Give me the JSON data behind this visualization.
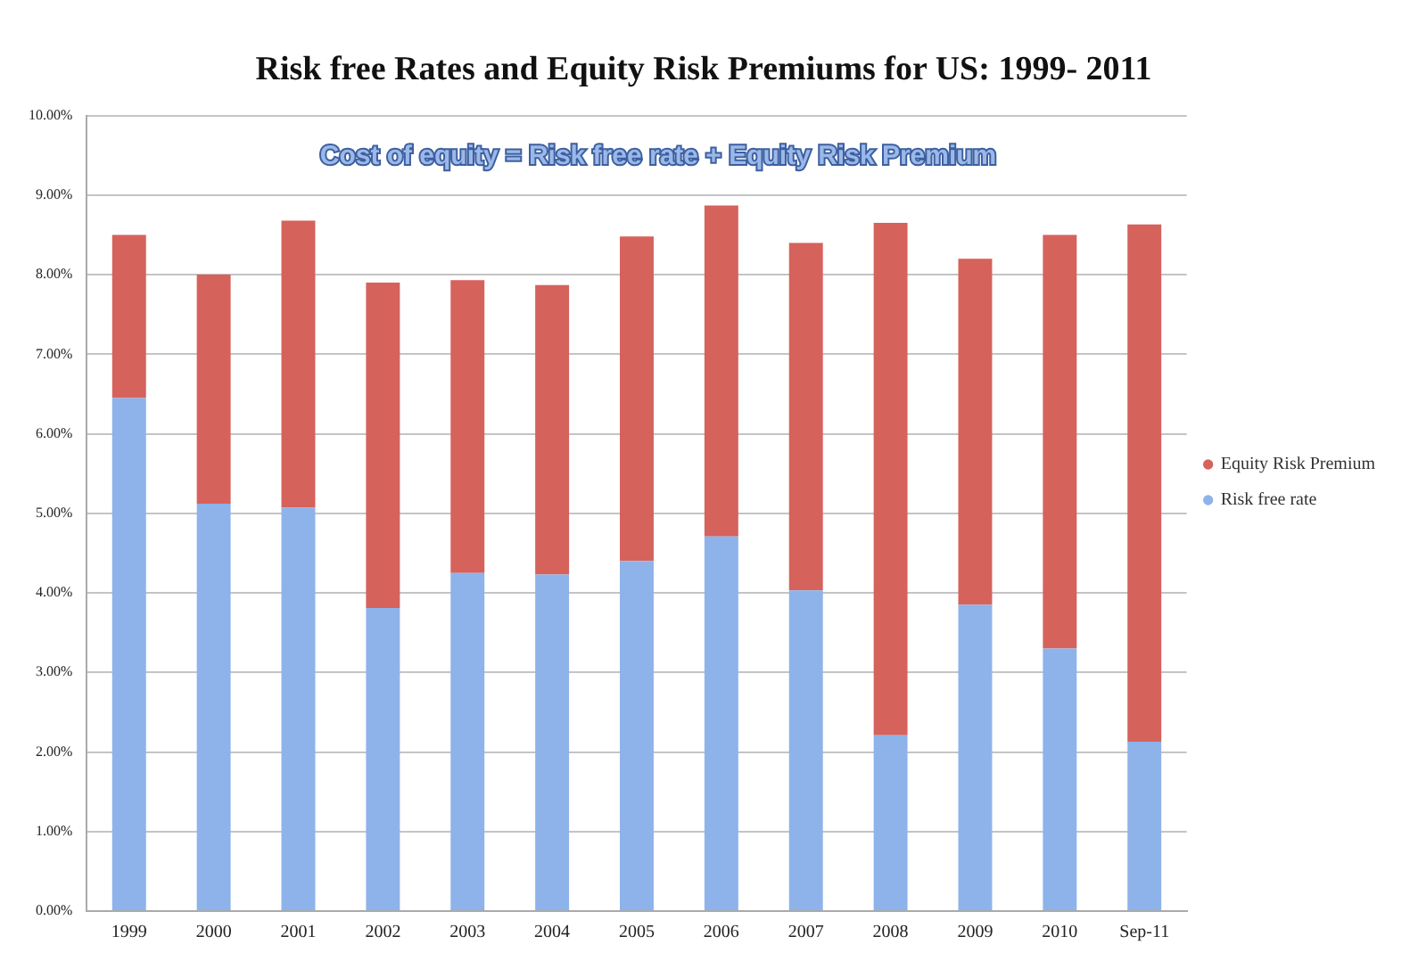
{
  "chart_data": {
    "type": "bar",
    "title": "Risk free Rates and Equity Risk Premiums for US: 1999- 2011",
    "annotations": [
      "Cost of equity = Risk free rate + Equity Risk Premium"
    ],
    "categories": [
      "1999",
      "2000",
      "2001",
      "2002",
      "2003",
      "2004",
      "2005",
      "2006",
      "2007",
      "2008",
      "2009",
      "2010",
      "Sep-11"
    ],
    "series": [
      {
        "name": "Risk free rate",
        "color": "#8db3ea",
        "values": [
          6.45,
          5.12,
          5.07,
          3.81,
          4.25,
          4.23,
          4.4,
          4.71,
          4.03,
          2.21,
          3.85,
          3.3,
          2.13
        ]
      },
      {
        "name": "Equity Risk Premium",
        "color": "#d6625c",
        "values": [
          2.05,
          2.88,
          3.61,
          4.09,
          3.68,
          3.64,
          4.08,
          4.16,
          4.37,
          6.44,
          4.35,
          5.2,
          6.5
        ]
      }
    ],
    "stacked": true,
    "ylim": [
      0,
      10
    ],
    "yticks": [
      {
        "value": 0,
        "label": "0.00%"
      },
      {
        "value": 1,
        "label": "1.00%"
      },
      {
        "value": 2,
        "label": "2.00%"
      },
      {
        "value": 3,
        "label": "3.00%"
      },
      {
        "value": 4,
        "label": "4.00%"
      },
      {
        "value": 5,
        "label": "5.00%"
      },
      {
        "value": 6,
        "label": "6.00%"
      },
      {
        "value": 7,
        "label": "7.00%"
      },
      {
        "value": 8,
        "label": "8.00%"
      },
      {
        "value": 9,
        "label": "9.00%"
      },
      {
        "value": 10,
        "label": "10.00%"
      }
    ],
    "grid": "y",
    "legend": "right"
  }
}
